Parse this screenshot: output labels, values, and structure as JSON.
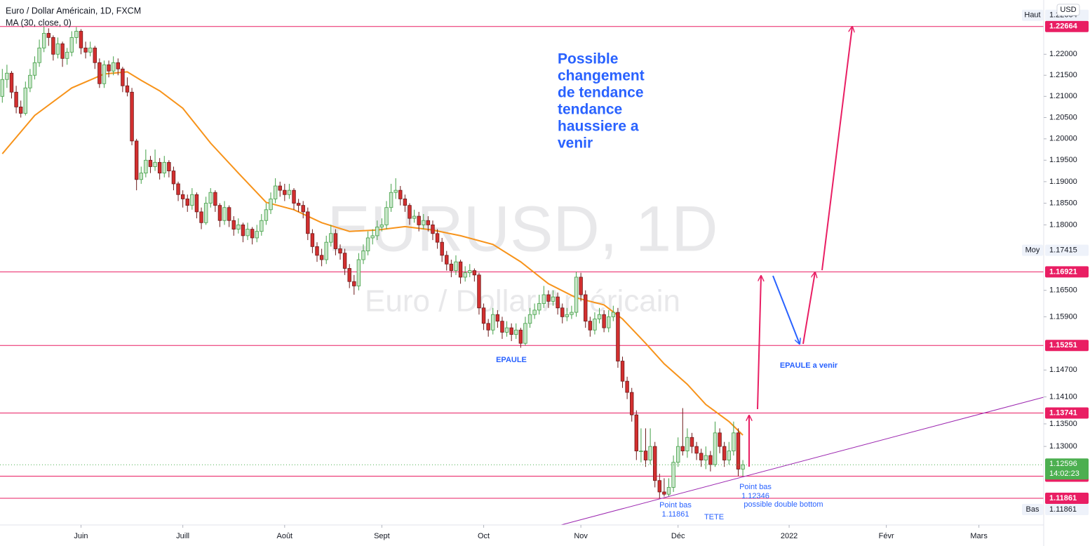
{
  "chart_data": {
    "type": "candlestick",
    "title": "Euro / Dollar Américain, 1D, FXCM",
    "watermark": {
      "symbol": "EURUSD, 1D",
      "description": "Euro / Dollar Américain"
    },
    "currency": "USD",
    "log_scale": true,
    "grid": false,
    "up_color": "#c8e6c9",
    "up_border": "#43a047",
    "down_color": "#d32f2f",
    "down_border": "#6d1b1b",
    "xlim": [
      -0.5,
      225
    ],
    "xticks": [
      {
        "value": 17,
        "label": "Juin"
      },
      {
        "value": 39,
        "label": "Juill"
      },
      {
        "value": 61,
        "label": "Août"
      },
      {
        "value": 82,
        "label": "Sept"
      },
      {
        "value": 104,
        "label": "Oct"
      },
      {
        "value": 125,
        "label": "Nov"
      },
      {
        "value": 146,
        "label": "Déc"
      },
      {
        "value": 170,
        "label": "2022"
      },
      {
        "value": 191,
        "label": "Févr"
      },
      {
        "value": 211,
        "label": "Mars"
      }
    ],
    "ylim": [
      1.1128,
      1.233
    ],
    "yticks": [
      {
        "value": 1.22,
        "label": "1.22000"
      },
      {
        "value": 1.215,
        "label": "1.21500"
      },
      {
        "value": 1.21,
        "label": "1.21000"
      },
      {
        "value": 1.205,
        "label": "1.20500"
      },
      {
        "value": 1.2,
        "label": "1.20000"
      },
      {
        "value": 1.195,
        "label": "1.19500"
      },
      {
        "value": 1.19,
        "label": "1.19000"
      },
      {
        "value": 1.185,
        "label": "1.18500"
      },
      {
        "value": 1.18,
        "label": "1.18000"
      },
      {
        "value": 1.165,
        "label": "1.16500"
      },
      {
        "value": 1.159,
        "label": "1.15900"
      },
      {
        "value": 1.147,
        "label": "1.14700"
      },
      {
        "value": 1.141,
        "label": "1.14100"
      },
      {
        "value": 1.135,
        "label": "1.13500"
      },
      {
        "value": 1.13,
        "label": "1.13000"
      }
    ],
    "candles": [
      [
        1.21,
        1.2165,
        1.2085,
        1.214
      ],
      [
        1.214,
        1.2175,
        1.212,
        1.2155
      ],
      [
        1.2155,
        1.216,
        1.2095,
        1.211
      ],
      [
        1.211,
        1.2125,
        1.206,
        1.2075
      ],
      [
        1.2075,
        1.209,
        1.205,
        1.206
      ],
      [
        1.206,
        1.2135,
        1.2055,
        1.212
      ],
      [
        1.212,
        1.2165,
        1.211,
        1.215
      ],
      [
        1.215,
        1.2195,
        1.214,
        1.218
      ],
      [
        1.218,
        1.2235,
        1.217,
        1.2215
      ],
      [
        1.2215,
        1.2266,
        1.2205,
        1.225
      ],
      [
        1.225,
        1.2262,
        1.222,
        1.224
      ],
      [
        1.224,
        1.2245,
        1.2185,
        1.22
      ],
      [
        1.22,
        1.224,
        1.219,
        1.2225
      ],
      [
        1.2225,
        1.223,
        1.217,
        1.219
      ],
      [
        1.219,
        1.2215,
        1.2175,
        1.2205
      ],
      [
        1.2205,
        1.2255,
        1.2195,
        1.224
      ],
      [
        1.224,
        1.2265,
        1.2225,
        1.2255
      ],
      [
        1.2255,
        1.226,
        1.22,
        1.2215
      ],
      [
        1.2215,
        1.223,
        1.219,
        1.2205
      ],
      [
        1.2205,
        1.223,
        1.2195,
        1.2215
      ],
      [
        1.2215,
        1.222,
        1.2165,
        1.218
      ],
      [
        1.218,
        1.219,
        1.212,
        1.213
      ],
      [
        1.213,
        1.2185,
        1.212,
        1.2175
      ],
      [
        1.2175,
        1.2185,
        1.2145,
        1.216
      ],
      [
        1.216,
        1.2195,
        1.215,
        1.218
      ],
      [
        1.218,
        1.219,
        1.215,
        1.2165
      ],
      [
        1.2165,
        1.217,
        1.211,
        1.2125
      ],
      [
        1.2125,
        1.2145,
        1.21,
        1.211
      ],
      [
        1.211,
        1.212,
        1.1985,
        1.1995
      ],
      [
        1.1995,
        1.2,
        1.188,
        1.1905
      ],
      [
        1.1905,
        1.1935,
        1.1895,
        1.192
      ],
      [
        1.192,
        1.1975,
        1.191,
        1.195
      ],
      [
        1.195,
        1.196,
        1.192,
        1.1935
      ],
      [
        1.1935,
        1.1975,
        1.1925,
        1.1945
      ],
      [
        1.1945,
        1.1955,
        1.1905,
        1.192
      ],
      [
        1.192,
        1.196,
        1.191,
        1.1945
      ],
      [
        1.1945,
        1.195,
        1.191,
        1.1925
      ],
      [
        1.1925,
        1.1935,
        1.188,
        1.1895
      ],
      [
        1.1895,
        1.19,
        1.1855,
        1.187
      ],
      [
        1.187,
        1.188,
        1.184,
        1.186
      ],
      [
        1.186,
        1.187,
        1.183,
        1.1845
      ],
      [
        1.1845,
        1.1885,
        1.1835,
        1.187
      ],
      [
        1.187,
        1.1875,
        1.1815,
        1.183
      ],
      [
        1.183,
        1.184,
        1.179,
        1.1805
      ],
      [
        1.1805,
        1.1865,
        1.18,
        1.185
      ],
      [
        1.185,
        1.1885,
        1.184,
        1.1875
      ],
      [
        1.1875,
        1.188,
        1.183,
        1.1845
      ],
      [
        1.1845,
        1.185,
        1.1795,
        1.181
      ],
      [
        1.181,
        1.1855,
        1.18,
        1.184
      ],
      [
        1.184,
        1.1845,
        1.1795,
        1.181
      ],
      [
        1.181,
        1.182,
        1.1775,
        1.179
      ],
      [
        1.179,
        1.1815,
        1.178,
        1.18
      ],
      [
        1.18,
        1.1805,
        1.176,
        1.1775
      ],
      [
        1.1775,
        1.1805,
        1.1765,
        1.179
      ],
      [
        1.179,
        1.1795,
        1.1755,
        1.177
      ],
      [
        1.177,
        1.18,
        1.176,
        1.1785
      ],
      [
        1.1785,
        1.1825,
        1.1775,
        1.181
      ],
      [
        1.181,
        1.185,
        1.18,
        1.1835
      ],
      [
        1.1835,
        1.1875,
        1.1825,
        1.186
      ],
      [
        1.186,
        1.1908,
        1.185,
        1.189
      ],
      [
        1.189,
        1.19,
        1.1865,
        1.188
      ],
      [
        1.188,
        1.1895,
        1.1855,
        1.187
      ],
      [
        1.187,
        1.1895,
        1.186,
        1.188
      ],
      [
        1.188,
        1.1885,
        1.1835,
        1.185
      ],
      [
        1.185,
        1.186,
        1.183,
        1.1845
      ],
      [
        1.1845,
        1.1855,
        1.1815,
        1.183
      ],
      [
        1.183,
        1.184,
        1.1765,
        1.178
      ],
      [
        1.178,
        1.179,
        1.1735,
        1.175
      ],
      [
        1.175,
        1.176,
        1.1715,
        1.173
      ],
      [
        1.173,
        1.1745,
        1.1705,
        1.172
      ],
      [
        1.172,
        1.1775,
        1.171,
        1.176
      ],
      [
        1.176,
        1.18,
        1.175,
        1.178
      ],
      [
        1.178,
        1.179,
        1.173,
        1.1745
      ],
      [
        1.1745,
        1.1755,
        1.172,
        1.1735
      ],
      [
        1.1735,
        1.1745,
        1.1685,
        1.17
      ],
      [
        1.17,
        1.171,
        1.1655,
        1.167
      ],
      [
        1.167,
        1.1685,
        1.164,
        1.166
      ],
      [
        1.166,
        1.1735,
        1.165,
        1.172
      ],
      [
        1.172,
        1.1755,
        1.171,
        1.174
      ],
      [
        1.174,
        1.1785,
        1.173,
        1.177
      ],
      [
        1.177,
        1.179,
        1.1755,
        1.1775
      ],
      [
        1.1775,
        1.181,
        1.1765,
        1.1795
      ],
      [
        1.1795,
        1.1815,
        1.1785,
        1.18
      ],
      [
        1.18,
        1.1855,
        1.179,
        1.184
      ],
      [
        1.184,
        1.1895,
        1.183,
        1.1875
      ],
      [
        1.1875,
        1.1908,
        1.186,
        1.188
      ],
      [
        1.188,
        1.189,
        1.1845,
        1.186
      ],
      [
        1.186,
        1.187,
        1.183,
        1.1845
      ],
      [
        1.1845,
        1.185,
        1.18,
        1.1815
      ],
      [
        1.1815,
        1.1835,
        1.1805,
        1.182
      ],
      [
        1.182,
        1.183,
        1.1785,
        1.18
      ],
      [
        1.18,
        1.1825,
        1.179,
        1.181
      ],
      [
        1.181,
        1.182,
        1.1785,
        1.18
      ],
      [
        1.18,
        1.181,
        1.1765,
        1.178
      ],
      [
        1.178,
        1.179,
        1.1745,
        1.176
      ],
      [
        1.176,
        1.177,
        1.1715,
        1.173
      ],
      [
        1.173,
        1.174,
        1.1695,
        1.171
      ],
      [
        1.171,
        1.172,
        1.168,
        1.1695
      ],
      [
        1.1695,
        1.173,
        1.1685,
        1.1715
      ],
      [
        1.1715,
        1.172,
        1.1665,
        1.168
      ],
      [
        1.168,
        1.1705,
        1.167,
        1.169
      ],
      [
        1.169,
        1.171,
        1.168,
        1.1695
      ],
      [
        1.1695,
        1.17,
        1.167,
        1.1685
      ],
      [
        1.1685,
        1.169,
        1.1595,
        1.161
      ],
      [
        1.161,
        1.162,
        1.156,
        1.1575
      ],
      [
        1.1575,
        1.1585,
        1.1545,
        1.156
      ],
      [
        1.156,
        1.161,
        1.155,
        1.1595
      ],
      [
        1.1595,
        1.1605,
        1.1565,
        1.158
      ],
      [
        1.158,
        1.159,
        1.154,
        1.1555
      ],
      [
        1.1555,
        1.158,
        1.1545,
        1.1565
      ],
      [
        1.1565,
        1.1575,
        1.1535,
        1.155
      ],
      [
        1.155,
        1.1575,
        1.154,
        1.156
      ],
      [
        1.156,
        1.1565,
        1.152,
        1.153
      ],
      [
        1.153,
        1.159,
        1.1525,
        1.1575
      ],
      [
        1.1575,
        1.161,
        1.1565,
        1.1595
      ],
      [
        1.1595,
        1.162,
        1.1585,
        1.1605
      ],
      [
        1.1605,
        1.164,
        1.1595,
        1.162
      ],
      [
        1.162,
        1.166,
        1.161,
        1.164
      ],
      [
        1.164,
        1.165,
        1.161,
        1.1625
      ],
      [
        1.1625,
        1.165,
        1.1615,
        1.1635
      ],
      [
        1.1635,
        1.1645,
        1.1595,
        1.161
      ],
      [
        1.161,
        1.162,
        1.1575,
        1.159
      ],
      [
        1.159,
        1.161,
        1.158,
        1.1595
      ],
      [
        1.1595,
        1.1615,
        1.1585,
        1.16
      ],
      [
        1.16,
        1.1692,
        1.159,
        1.168
      ],
      [
        1.168,
        1.169,
        1.1625,
        1.164
      ],
      [
        1.164,
        1.165,
        1.1565,
        1.158
      ],
      [
        1.158,
        1.159,
        1.1545,
        1.156
      ],
      [
        1.156,
        1.16,
        1.155,
        1.1585
      ],
      [
        1.1585,
        1.161,
        1.1575,
        1.1595
      ],
      [
        1.1595,
        1.1605,
        1.1555,
        1.1565
      ],
      [
        1.1565,
        1.1605,
        1.1555,
        1.159
      ],
      [
        1.159,
        1.1615,
        1.158,
        1.16
      ],
      [
        1.16,
        1.161,
        1.1475,
        1.149
      ],
      [
        1.149,
        1.15,
        1.143,
        1.1445
      ],
      [
        1.1445,
        1.1455,
        1.1405,
        1.142
      ],
      [
        1.142,
        1.143,
        1.1355,
        1.137
      ],
      [
        1.137,
        1.138,
        1.127,
        1.129
      ],
      [
        1.129,
        1.134,
        1.1265,
        1.129
      ],
      [
        1.129,
        1.134,
        1.1255,
        1.127
      ],
      [
        1.127,
        1.134,
        1.126,
        1.13
      ],
      [
        1.13,
        1.131,
        1.121,
        1.1225
      ],
      [
        1.1225,
        1.124,
        1.1186,
        1.12
      ],
      [
        1.12,
        1.123,
        1.119,
        1.1195
      ],
      [
        1.1195,
        1.123,
        1.119,
        1.121
      ],
      [
        1.121,
        1.128,
        1.12,
        1.1265
      ],
      [
        1.1265,
        1.132,
        1.1255,
        1.13
      ],
      [
        1.13,
        1.1385,
        1.128,
        1.129
      ],
      [
        1.129,
        1.134,
        1.1275,
        1.132
      ],
      [
        1.132,
        1.133,
        1.1285,
        1.13
      ],
      [
        1.13,
        1.131,
        1.127,
        1.1285
      ],
      [
        1.1285,
        1.1295,
        1.1255,
        1.127
      ],
      [
        1.127,
        1.13,
        1.125,
        1.128
      ],
      [
        1.128,
        1.129,
        1.1245,
        1.126
      ],
      [
        1.126,
        1.1355,
        1.1255,
        1.133
      ],
      [
        1.133,
        1.134,
        1.1285,
        1.13
      ],
      [
        1.13,
        1.131,
        1.1255,
        1.127
      ],
      [
        1.127,
        1.131,
        1.126,
        1.129
      ],
      [
        1.129,
        1.1355,
        1.128,
        1.133
      ],
      [
        1.133,
        1.134,
        1.1235,
        1.125
      ],
      [
        1.125,
        1.127,
        1.12346,
        1.12596
      ]
    ],
    "ma": {
      "name": "MA (30, close, 0)",
      "color": "#f7931a",
      "x": [
        0,
        7,
        15,
        22,
        27,
        30,
        34,
        39,
        45,
        51,
        57,
        63,
        69,
        75,
        81,
        87,
        93,
        99,
        106,
        112,
        118,
        124,
        130,
        134,
        139,
        143,
        148,
        152,
        157,
        160
      ],
      "values": [
        1.1965,
        1.2055,
        1.212,
        1.2153,
        1.2158,
        1.2138,
        1.2113,
        1.2072,
        1.199,
        1.192,
        1.1852,
        1.1835,
        1.1805,
        1.1785,
        1.1788,
        1.1796,
        1.1788,
        1.1775,
        1.1755,
        1.1715,
        1.1665,
        1.1633,
        1.1617,
        1.1585,
        1.153,
        1.1484,
        1.1438,
        1.1393,
        1.1355,
        1.1325
      ]
    },
    "level_color": "#e91e63",
    "levels": [
      1.22664,
      1.16921,
      1.15251,
      1.13741,
      1.12346,
      1.11861
    ],
    "last_price": {
      "value": 1.12596,
      "countdown": "14:02:23",
      "color": "#4caf50"
    },
    "stats": [
      {
        "label": "Haut",
        "value": 1.22664
      },
      {
        "label": "Moy",
        "value": 1.17415
      },
      {
        "label": "Bas",
        "value": 1.11861
      }
    ],
    "annotation_color": "#2962ff",
    "annotations": [
      {
        "lines": [
          "Possible",
          "changement",
          "de tendance",
          "tendance",
          "haussiere a",
          "venir"
        ]
      },
      {
        "lines": [
          "EPAULE"
        ]
      },
      {
        "lines": [
          "EPAULE a venir"
        ]
      },
      {
        "lines": [
          "Point bas",
          "1.11861"
        ]
      },
      {
        "lines": [
          "TETE"
        ]
      },
      {
        "lines": [
          "Point bas",
          "1.12346"
        ]
      },
      {
        "lines": [
          "possible double bottom"
        ]
      }
    ]
  }
}
